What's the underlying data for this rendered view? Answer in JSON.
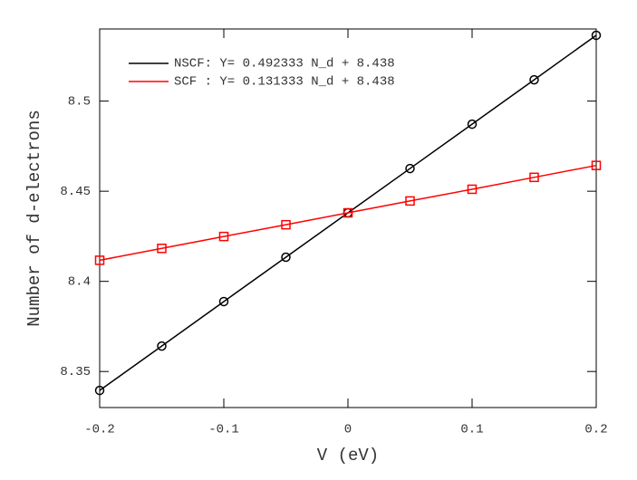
{
  "chart_data": {
    "type": "line",
    "xlabel": "V (eV)",
    "ylabel": "Number of d-electrons",
    "x": [
      -0.2,
      -0.15,
      -0.1,
      -0.05,
      0,
      0.05,
      0.1,
      0.15,
      0.2
    ],
    "series": [
      {
        "name": "NSCF: Y= 0.492333 N_d + 8.438",
        "color": "#000000",
        "marker": "circle",
        "values": [
          8.3395,
          8.3641,
          8.3888,
          8.4134,
          8.438,
          8.4626,
          8.4872,
          8.5118,
          8.5365
        ]
      },
      {
        "name": "SCF : Y= 0.131333 N_d + 8.438",
        "color": "#ff0000",
        "marker": "square",
        "values": [
          8.4117,
          8.4183,
          8.4249,
          8.4314,
          8.438,
          8.4446,
          8.4511,
          8.4577,
          8.4643
        ]
      }
    ],
    "xlim": [
      -0.2,
      0.2
    ],
    "xticks": [
      -0.2,
      -0.1,
      0,
      0.1,
      0.2
    ],
    "ylim": [
      8.33,
      8.54
    ],
    "yticks": [
      8.35,
      8.4,
      8.45,
      8.5
    ],
    "legend": "upper left",
    "grid": false
  }
}
